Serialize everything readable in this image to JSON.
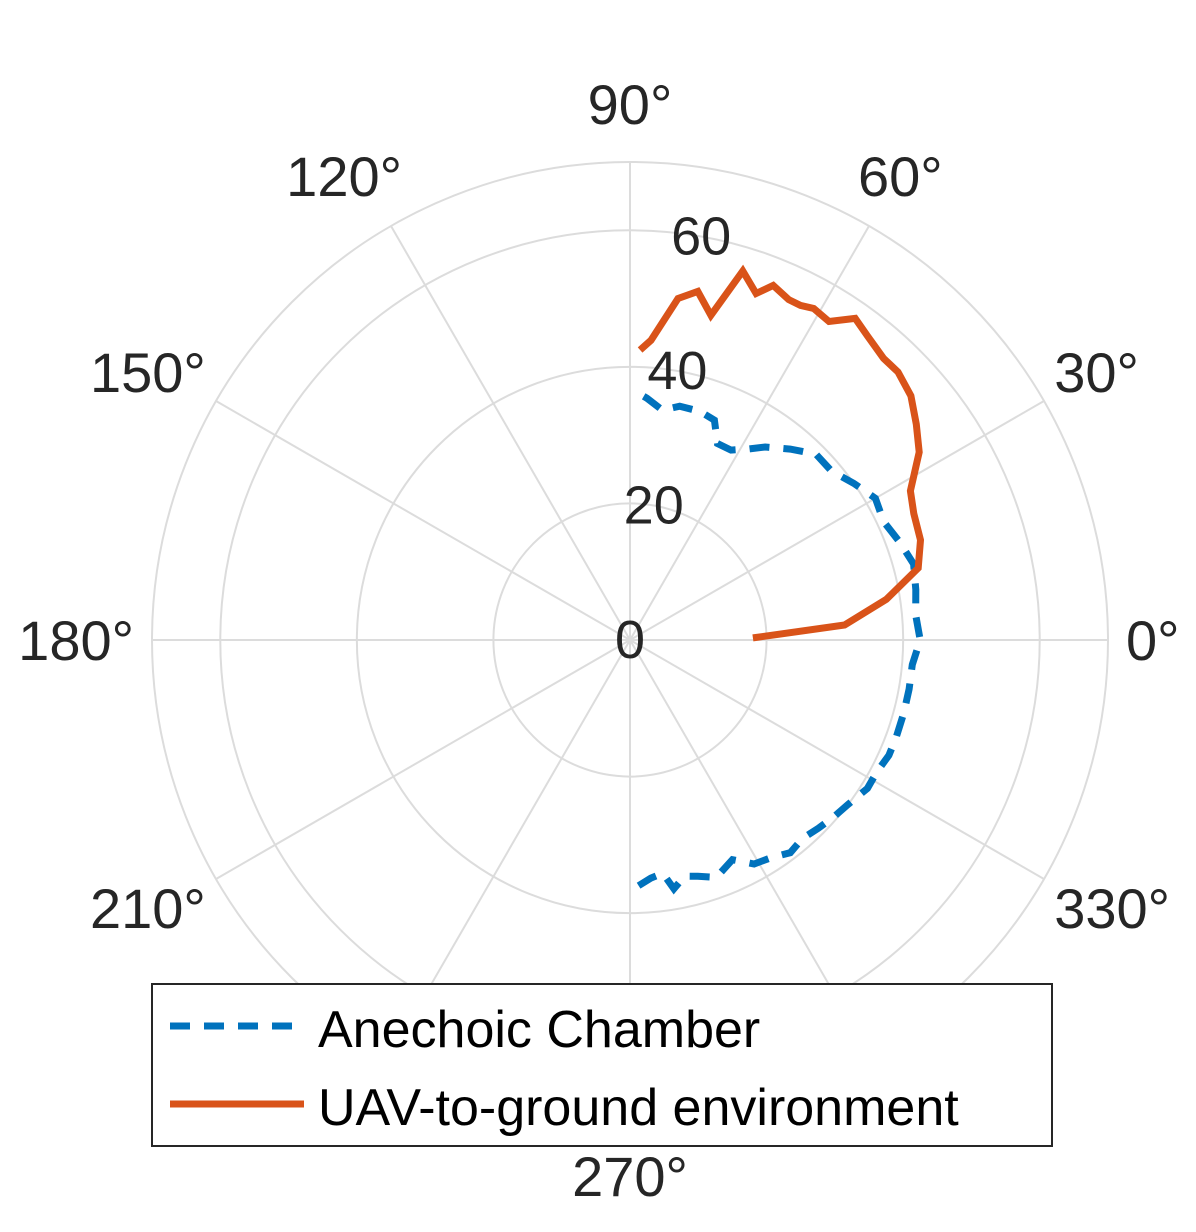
{
  "chart_data": {
    "type": "polar-line",
    "r_ticks": [
      0,
      20,
      40,
      60
    ],
    "r_max": 70,
    "theta_ticks": [
      0,
      30,
      60,
      90,
      120,
      150,
      180,
      210,
      270,
      330
    ],
    "theta_tick_labels": [
      "0°",
      "30°",
      "60°",
      "90°",
      "120°",
      "150°",
      "180°",
      "210°",
      "270°",
      "330°"
    ],
    "r_tick_labels": [
      "0",
      "20",
      "40",
      "60"
    ],
    "grid": true,
    "legend_position": "bottom",
    "series": [
      {
        "name": "Anechoic Chamber",
        "color": "#0072BD",
        "style": "dashed",
        "theta": [
          -88,
          -85,
          -82,
          -80,
          -77,
          -74,
          -70,
          -65,
          -61,
          -57,
          -53,
          -49,
          -45,
          -41,
          -37,
          -32,
          -28,
          -24,
          -20,
          -15,
          -10,
          -5,
          0,
          5,
          10,
          15,
          20,
          25,
          30,
          35,
          40,
          45,
          50,
          55,
          58,
          62,
          66,
          69,
          73,
          78,
          82,
          86,
          89
        ],
        "r": [
          36.0,
          35.0,
          34.5,
          37.0,
          35.5,
          36.0,
          37.0,
          35.5,
          37.5,
          38.0,
          39.0,
          38.5,
          39.0,
          39.5,
          40.0,
          41.0,
          41.0,
          41.5,
          41.5,
          41.5,
          41.5,
          41.5,
          42.5,
          42.0,
          42.5,
          43.0,
          42.0,
          41.0,
          41.5,
          40.0,
          38.5,
          38.5,
          36.5,
          34.5,
          33.0,
          31.5,
          31.5,
          34.5,
          35.0,
          35.0,
          34.0,
          35.5,
          36.5
        ]
      },
      {
        "name": "UAV-to-ground environment",
        "color": "#D95319",
        "style": "solid",
        "theta": [
          1,
          4,
          9,
          14,
          19,
          24,
          28,
          33,
          37,
          41,
          45,
          48,
          52,
          55,
          58,
          61,
          63,
          65,
          68,
          70,
          73,
          76,
          79,
          82,
          86,
          88
        ],
        "r": [
          18.0,
          31.5,
          38.0,
          43.5,
          45.0,
          45.5,
          46.5,
          50.5,
          52.5,
          54.5,
          55.5,
          55.5,
          56.5,
          57.5,
          55.0,
          55.5,
          55.0,
          55.0,
          56.0,
          54.0,
          56.5,
          49.0,
          52.0,
          50.5,
          44.0,
          42.5
        ]
      }
    ]
  }
}
